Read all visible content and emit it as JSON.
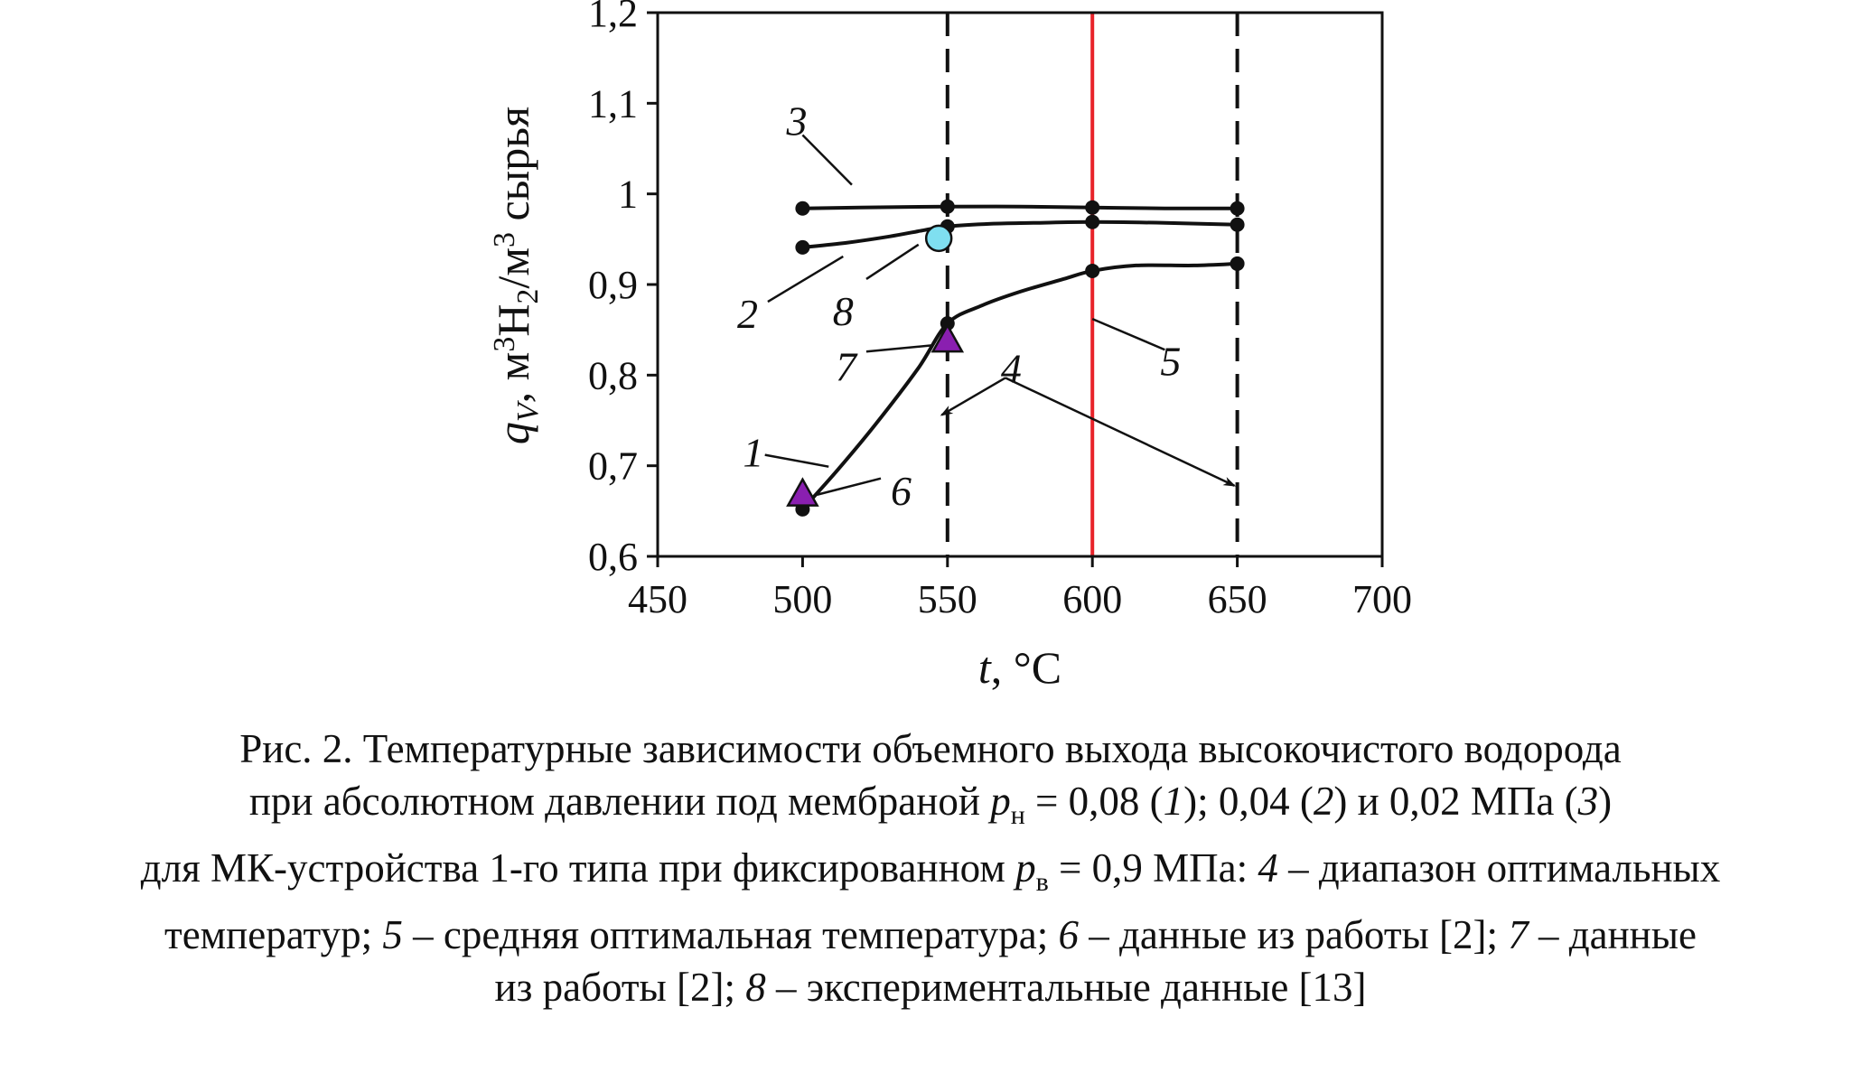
{
  "chart_data": {
    "type": "line",
    "x_axis": {
      "label_var": "t",
      "label_unit": ", °C",
      "min": 450,
      "max": 700,
      "ticks": [
        "450",
        "500",
        "550",
        "600",
        "650",
        "700"
      ]
    },
    "y_axis": {
      "label_var": "q",
      "label_sub": "V",
      "label_mid": ", м",
      "label_sup1": "3",
      "label_h": "H",
      "label_h_sub": "2",
      "label_per": "/м",
      "label_sup2": "3",
      "label_tail": " сырья",
      "min": 0.6,
      "max": 1.2,
      "ticks": [
        {
          "v": 0.6,
          "label": "0,6"
        },
        {
          "v": 0.7,
          "label": "0,7"
        },
        {
          "v": 0.8,
          "label": "0,8"
        },
        {
          "v": 0.9,
          "label": "0,9"
        },
        {
          "v": 1.0,
          "label": "1"
        },
        {
          "v": 1.1,
          "label": "1,1"
        },
        {
          "v": 1.2,
          "label": "1,2"
        }
      ]
    },
    "grid": false,
    "series": [
      {
        "id": "1",
        "label": "1",
        "color": "#111111",
        "points": [
          [
            500,
            0.652
          ],
          [
            550,
            0.857
          ],
          [
            600,
            0.915
          ],
          [
            650,
            0.923
          ]
        ],
        "curve": [
          [
            500,
            0.652
          ],
          [
            512,
            0.695
          ],
          [
            525,
            0.745
          ],
          [
            540,
            0.808
          ],
          [
            550,
            0.857
          ],
          [
            562,
            0.877
          ],
          [
            575,
            0.892
          ],
          [
            590,
            0.906
          ],
          [
            600,
            0.915
          ],
          [
            615,
            0.921
          ],
          [
            635,
            0.921
          ],
          [
            650,
            0.923
          ]
        ]
      },
      {
        "id": "2",
        "label": "2",
        "color": "#111111",
        "points": [
          [
            500,
            0.941
          ],
          [
            550,
            0.964
          ],
          [
            600,
            0.969
          ],
          [
            650,
            0.966
          ]
        ],
        "curve": [
          [
            500,
            0.941
          ],
          [
            515,
            0.946
          ],
          [
            530,
            0.953
          ],
          [
            542,
            0.96
          ],
          [
            550,
            0.964
          ],
          [
            565,
            0.967
          ],
          [
            580,
            0.968
          ],
          [
            600,
            0.969
          ],
          [
            625,
            0.968
          ],
          [
            650,
            0.966
          ]
        ]
      },
      {
        "id": "3",
        "label": "3",
        "color": "#111111",
        "points": [
          [
            500,
            0.984
          ],
          [
            550,
            0.986
          ],
          [
            600,
            0.985
          ],
          [
            650,
            0.984
          ]
        ],
        "curve": [
          [
            500,
            0.984
          ],
          [
            520,
            0.985
          ],
          [
            550,
            0.986
          ],
          [
            575,
            0.986
          ],
          [
            600,
            0.985
          ],
          [
            625,
            0.984
          ],
          [
            650,
            0.984
          ]
        ]
      }
    ],
    "vertical_lines": [
      {
        "id": "4a",
        "x": 550,
        "style": "dashed",
        "color": "#111111"
      },
      {
        "id": "5",
        "x": 600,
        "style": "solid",
        "color": "#e8232a"
      },
      {
        "id": "4b",
        "x": 650,
        "style": "dashed",
        "color": "#111111"
      }
    ],
    "markers": [
      {
        "id": "6",
        "shape": "triangle",
        "x": 500,
        "y": 0.668,
        "color": "#8a1fb0"
      },
      {
        "id": "7",
        "shape": "triangle",
        "x": 550,
        "y": 0.838,
        "color": "#8a1fb0"
      },
      {
        "id": "8",
        "shape": "circle",
        "x": 547,
        "y": 0.951,
        "color": "#7fdff0"
      }
    ],
    "annotations": [
      {
        "id": "1",
        "label": "1",
        "text_x": 483,
        "text_y": 0.715,
        "leader": [
          [
            487,
            0.712
          ],
          [
            509,
            0.699
          ]
        ]
      },
      {
        "id": "2",
        "label": "2",
        "text_x": 481,
        "text_y": 0.868,
        "leader": [
          [
            488,
            0.881
          ],
          [
            514,
            0.931
          ]
        ]
      },
      {
        "id": "3",
        "label": "3",
        "text_x": 498,
        "text_y": 1.081,
        "leader": [
          [
            500,
            1.065
          ],
          [
            517,
            1.01
          ]
        ]
      },
      {
        "id": "4",
        "label": "4",
        "text_x": 572,
        "text_y": 0.808,
        "leader": [
          [
            570,
            0.797
          ],
          [
            548,
            0.756
          ]
        ],
        "leader2": [
          [
            570,
            0.797
          ],
          [
            649,
            0.678
          ]
        ],
        "arrows": true
      },
      {
        "id": "5",
        "label": "5",
        "text_x": 627,
        "text_y": 0.816,
        "leader": [
          [
            625,
            0.828
          ],
          [
            600,
            0.862
          ]
        ]
      },
      {
        "id": "6",
        "label": "6",
        "text_x": 534,
        "text_y": 0.673,
        "leader": [
          [
            527,
            0.686
          ],
          [
            505,
            0.668
          ]
        ]
      },
      {
        "id": "7",
        "label": "7",
        "text_x": 515,
        "text_y": 0.81,
        "leader": [
          [
            522,
            0.826
          ],
          [
            545,
            0.833
          ]
        ]
      },
      {
        "id": "8",
        "label": "8",
        "text_x": 514,
        "text_y": 0.871,
        "leader": [
          [
            522,
            0.906
          ],
          [
            540,
            0.944
          ]
        ]
      }
    ]
  },
  "caption": {
    "line1": "Рис. 2. Температурные зависимости объемного выхода высокочистого водорода",
    "line2_a": "при абсолютном давлении под мембраной ",
    "line2_p": "p",
    "line2_p_sub": "н",
    "line2_b": " = 0,08 (",
    "line2_n1": "1",
    "line2_c": "); 0,04 (",
    "line2_n2": "2",
    "line2_d": ") и 0,02  МПа (",
    "line2_n3": "3",
    "line2_e": ")",
    "line3_a": "для МК-устройства 1-го типа при фиксированном ",
    "line3_p": "p",
    "line3_p_sub": "в",
    "line3_b": " = 0,9 МПа: ",
    "line3_n4": "4",
    "line3_c": " – диапазон оптимальных",
    "line4_a": "температур; ",
    "line4_n5": "5",
    "line4_b": " – средняя оптимальная температура; ",
    "line4_n6": "6",
    "line4_c": " – данные из работы [2]; ",
    "line4_n7": "7",
    "line4_d": " – данные",
    "line5_a": "из работы [2]; ",
    "line5_n8": "8",
    "line5_b": " – экспериментальные данные [13]"
  }
}
